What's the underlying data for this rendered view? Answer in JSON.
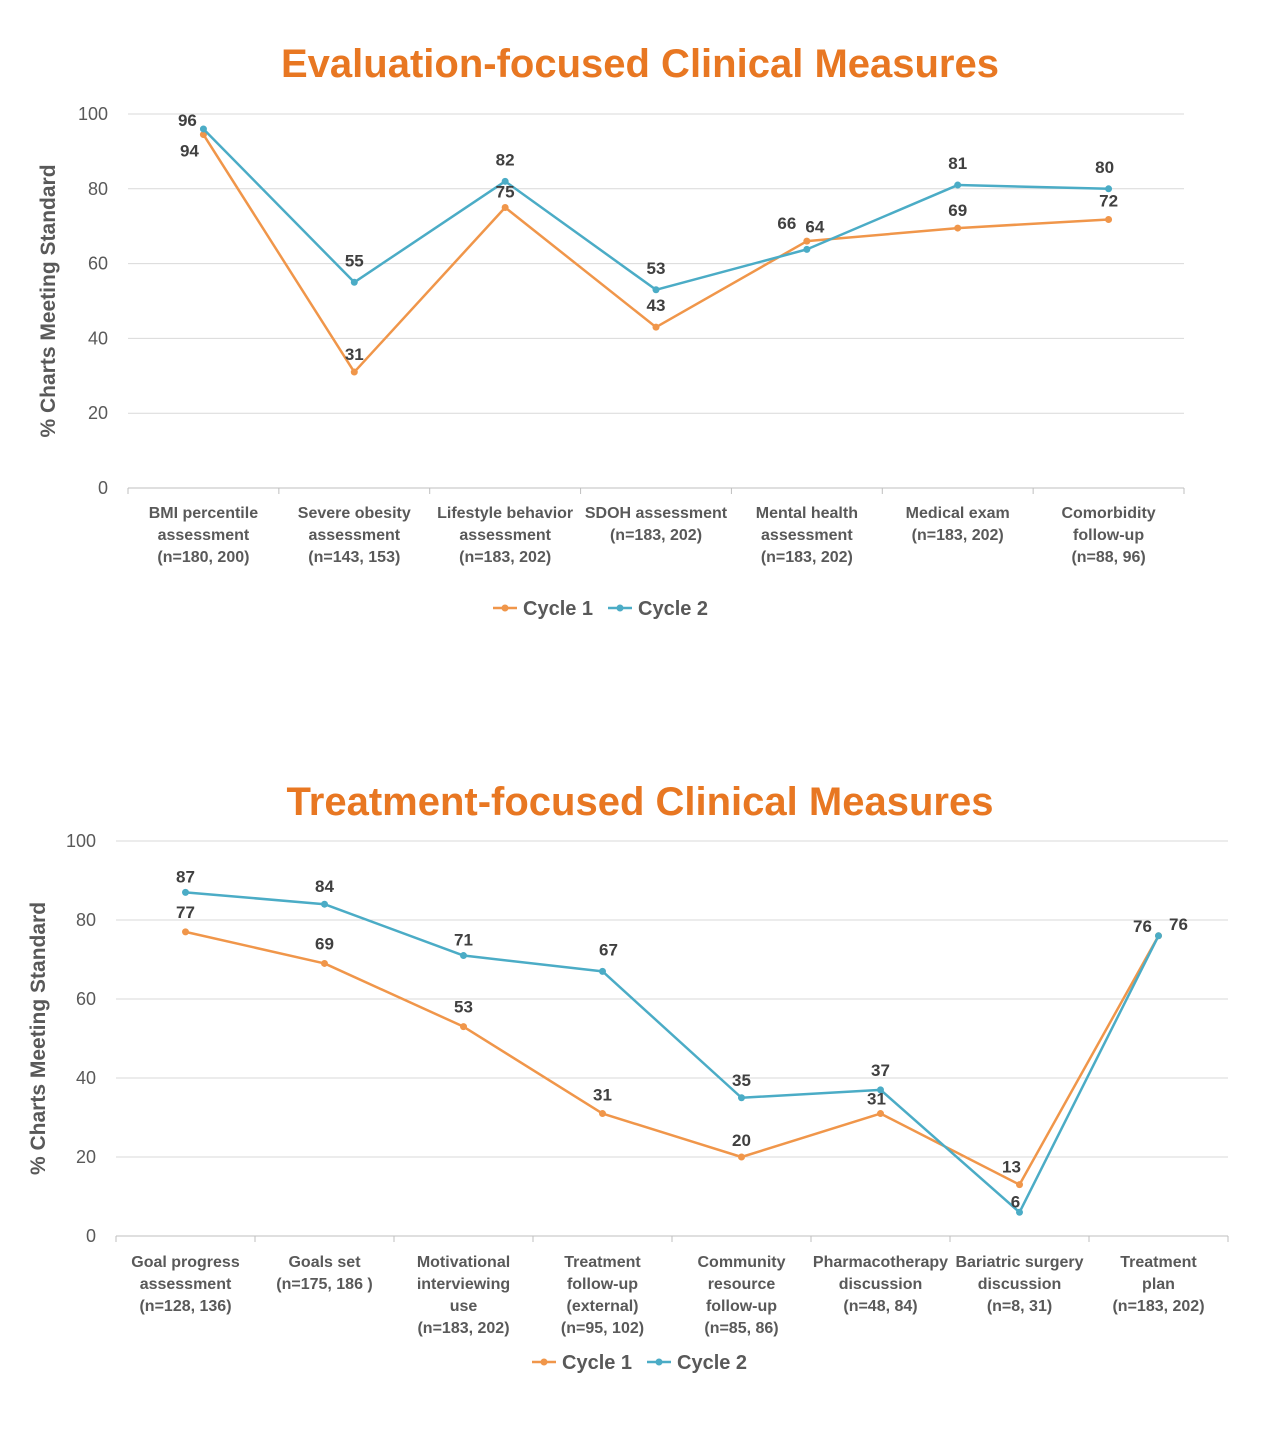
{
  "colors": {
    "title": "#E87722",
    "cycle1": "#F0964A",
    "cycle2": "#4BACC6",
    "grid": "#D9D9D9",
    "text": "#595959"
  },
  "chart_data": [
    {
      "type": "line",
      "title": "Evaluation-focused Clinical Measures",
      "xlabel": "",
      "ylabel": "% Charts Meeting Standard",
      "ylim": [
        0,
        100
      ],
      "yticks": [
        0,
        20,
        40,
        60,
        80,
        100
      ],
      "grid": true,
      "legend": "bottom",
      "categories": [
        [
          "BMI percentile",
          "assessment",
          "(n=180, 200)"
        ],
        [
          "Severe obesity",
          "assessment",
          "(n=143, 153)"
        ],
        [
          "Lifestyle behavior",
          "assessment",
          "(n=183, 202)"
        ],
        [
          "SDOH assessment",
          "(n=183, 202)"
        ],
        [
          "Mental health",
          "assessment",
          "(n=183, 202)"
        ],
        [
          "Medical exam",
          "(n=183, 202)"
        ],
        [
          "Comorbidity",
          "follow-up",
          "(n=88, 96)"
        ]
      ],
      "series": [
        {
          "name": "Cycle 1",
          "color": "#F0964A",
          "values": [
            94.5,
            31,
            75,
            43,
            66,
            69.5,
            71.8
          ],
          "labels": [
            "94",
            "31",
            "75",
            "43",
            "66",
            "69",
            "72"
          ]
        },
        {
          "name": "Cycle 2",
          "color": "#4BACC6",
          "values": [
            96,
            55,
            82,
            53,
            63.8,
            81,
            80
          ],
          "labels": [
            "96",
            "55",
            "82",
            "53",
            "64",
            "81",
            "80"
          ]
        }
      ]
    },
    {
      "type": "line",
      "title": "Treatment-focused Clinical Measures",
      "xlabel": "",
      "ylabel": "% Charts Meeting Standard",
      "ylim": [
        0,
        100
      ],
      "yticks": [
        0,
        20,
        40,
        60,
        80,
        100
      ],
      "grid": true,
      "legend": "bottom",
      "categories": [
        [
          "Goal progress",
          "assessment",
          "(n=128, 136)"
        ],
        [
          "Goals set",
          "(n=175, 186 )"
        ],
        [
          "Motivational",
          "interviewing",
          "use",
          "(n=183, 202)"
        ],
        [
          "Treatment",
          "follow-up",
          "(external)",
          "(n=95, 102)"
        ],
        [
          "Community",
          "resource",
          "follow-up",
          "(n=85, 86)"
        ],
        [
          "Pharmacotherapy",
          "discussion",
          "(n=48, 84)"
        ],
        [
          "Bariatric surgery",
          "discussion",
          "(n=8, 31)"
        ],
        [
          "Treatment",
          "plan",
          "(n=183, 202)"
        ]
      ],
      "series": [
        {
          "name": "Cycle 1",
          "color": "#F0964A",
          "values": [
            77,
            69,
            53,
            31,
            20,
            31,
            13,
            76
          ],
          "labels": [
            "77",
            "69",
            "53",
            "31",
            "20",
            "31",
            "13",
            "76"
          ]
        },
        {
          "name": "Cycle 2",
          "color": "#4BACC6",
          "values": [
            87,
            84,
            71,
            67,
            35,
            37,
            6,
            76
          ],
          "labels": [
            "87",
            "84",
            "71",
            "67",
            "35",
            "37",
            "6",
            "76"
          ]
        }
      ]
    }
  ]
}
